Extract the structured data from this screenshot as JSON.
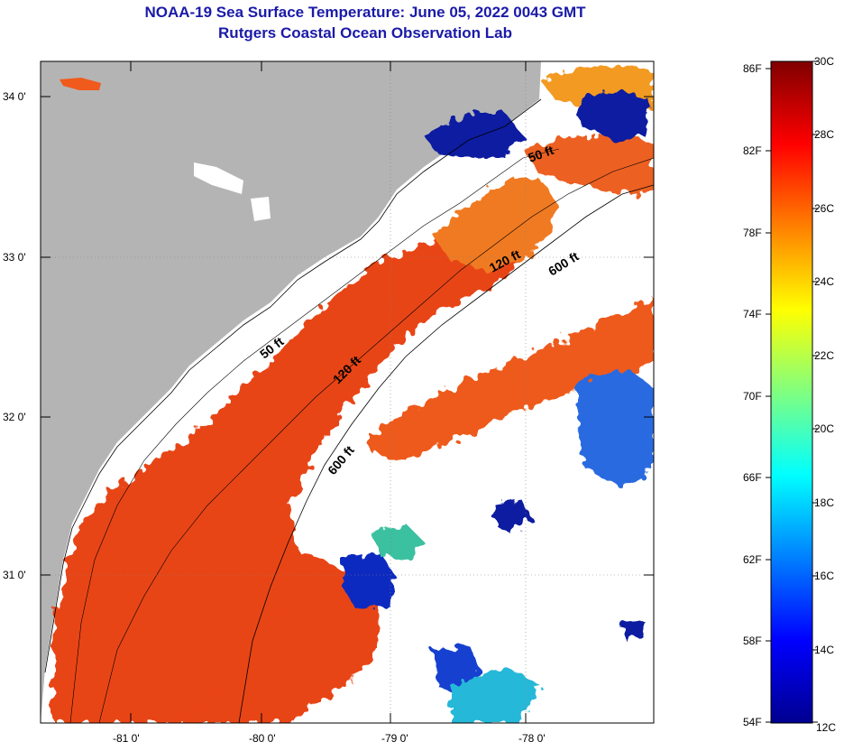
{
  "title": {
    "line1": "NOAA-19 Sea Surface Temperature:  June 05, 2022 0043 GMT",
    "line2": "Rutgers Coastal Ocean Observation Lab"
  },
  "map": {
    "lon_labels": [
      "-81 0'",
      "-80 0'",
      "-79 0'",
      "-78 0'"
    ],
    "lat_labels": [
      "34 0'",
      "33 0'",
      "32 0'",
      "31 0'"
    ],
    "contours": [
      "50 ft",
      "120 ft",
      "600 ft",
      "50 ft",
      "120 ft",
      "600 ft"
    ],
    "colors": {
      "land": "#b4b4b4",
      "cloud": "#ffffff",
      "warm": "#e8401a",
      "cool": "#0a1ea0"
    }
  },
  "colorbar": {
    "fahrenheit": [
      "86F",
      "82F",
      "78F",
      "74F",
      "70F",
      "66F",
      "62F",
      "58F",
      "54F"
    ],
    "celsius": [
      "30C",
      "28C",
      "26C",
      "24C",
      "22C",
      "20C",
      "18C",
      "16C",
      "14C",
      "12C"
    ],
    "stops": [
      "#000090",
      "#0000ff",
      "#0080ff",
      "#00ffff",
      "#80ff80",
      "#ffff00",
      "#ff8000",
      "#ff0000",
      "#800000"
    ]
  }
}
